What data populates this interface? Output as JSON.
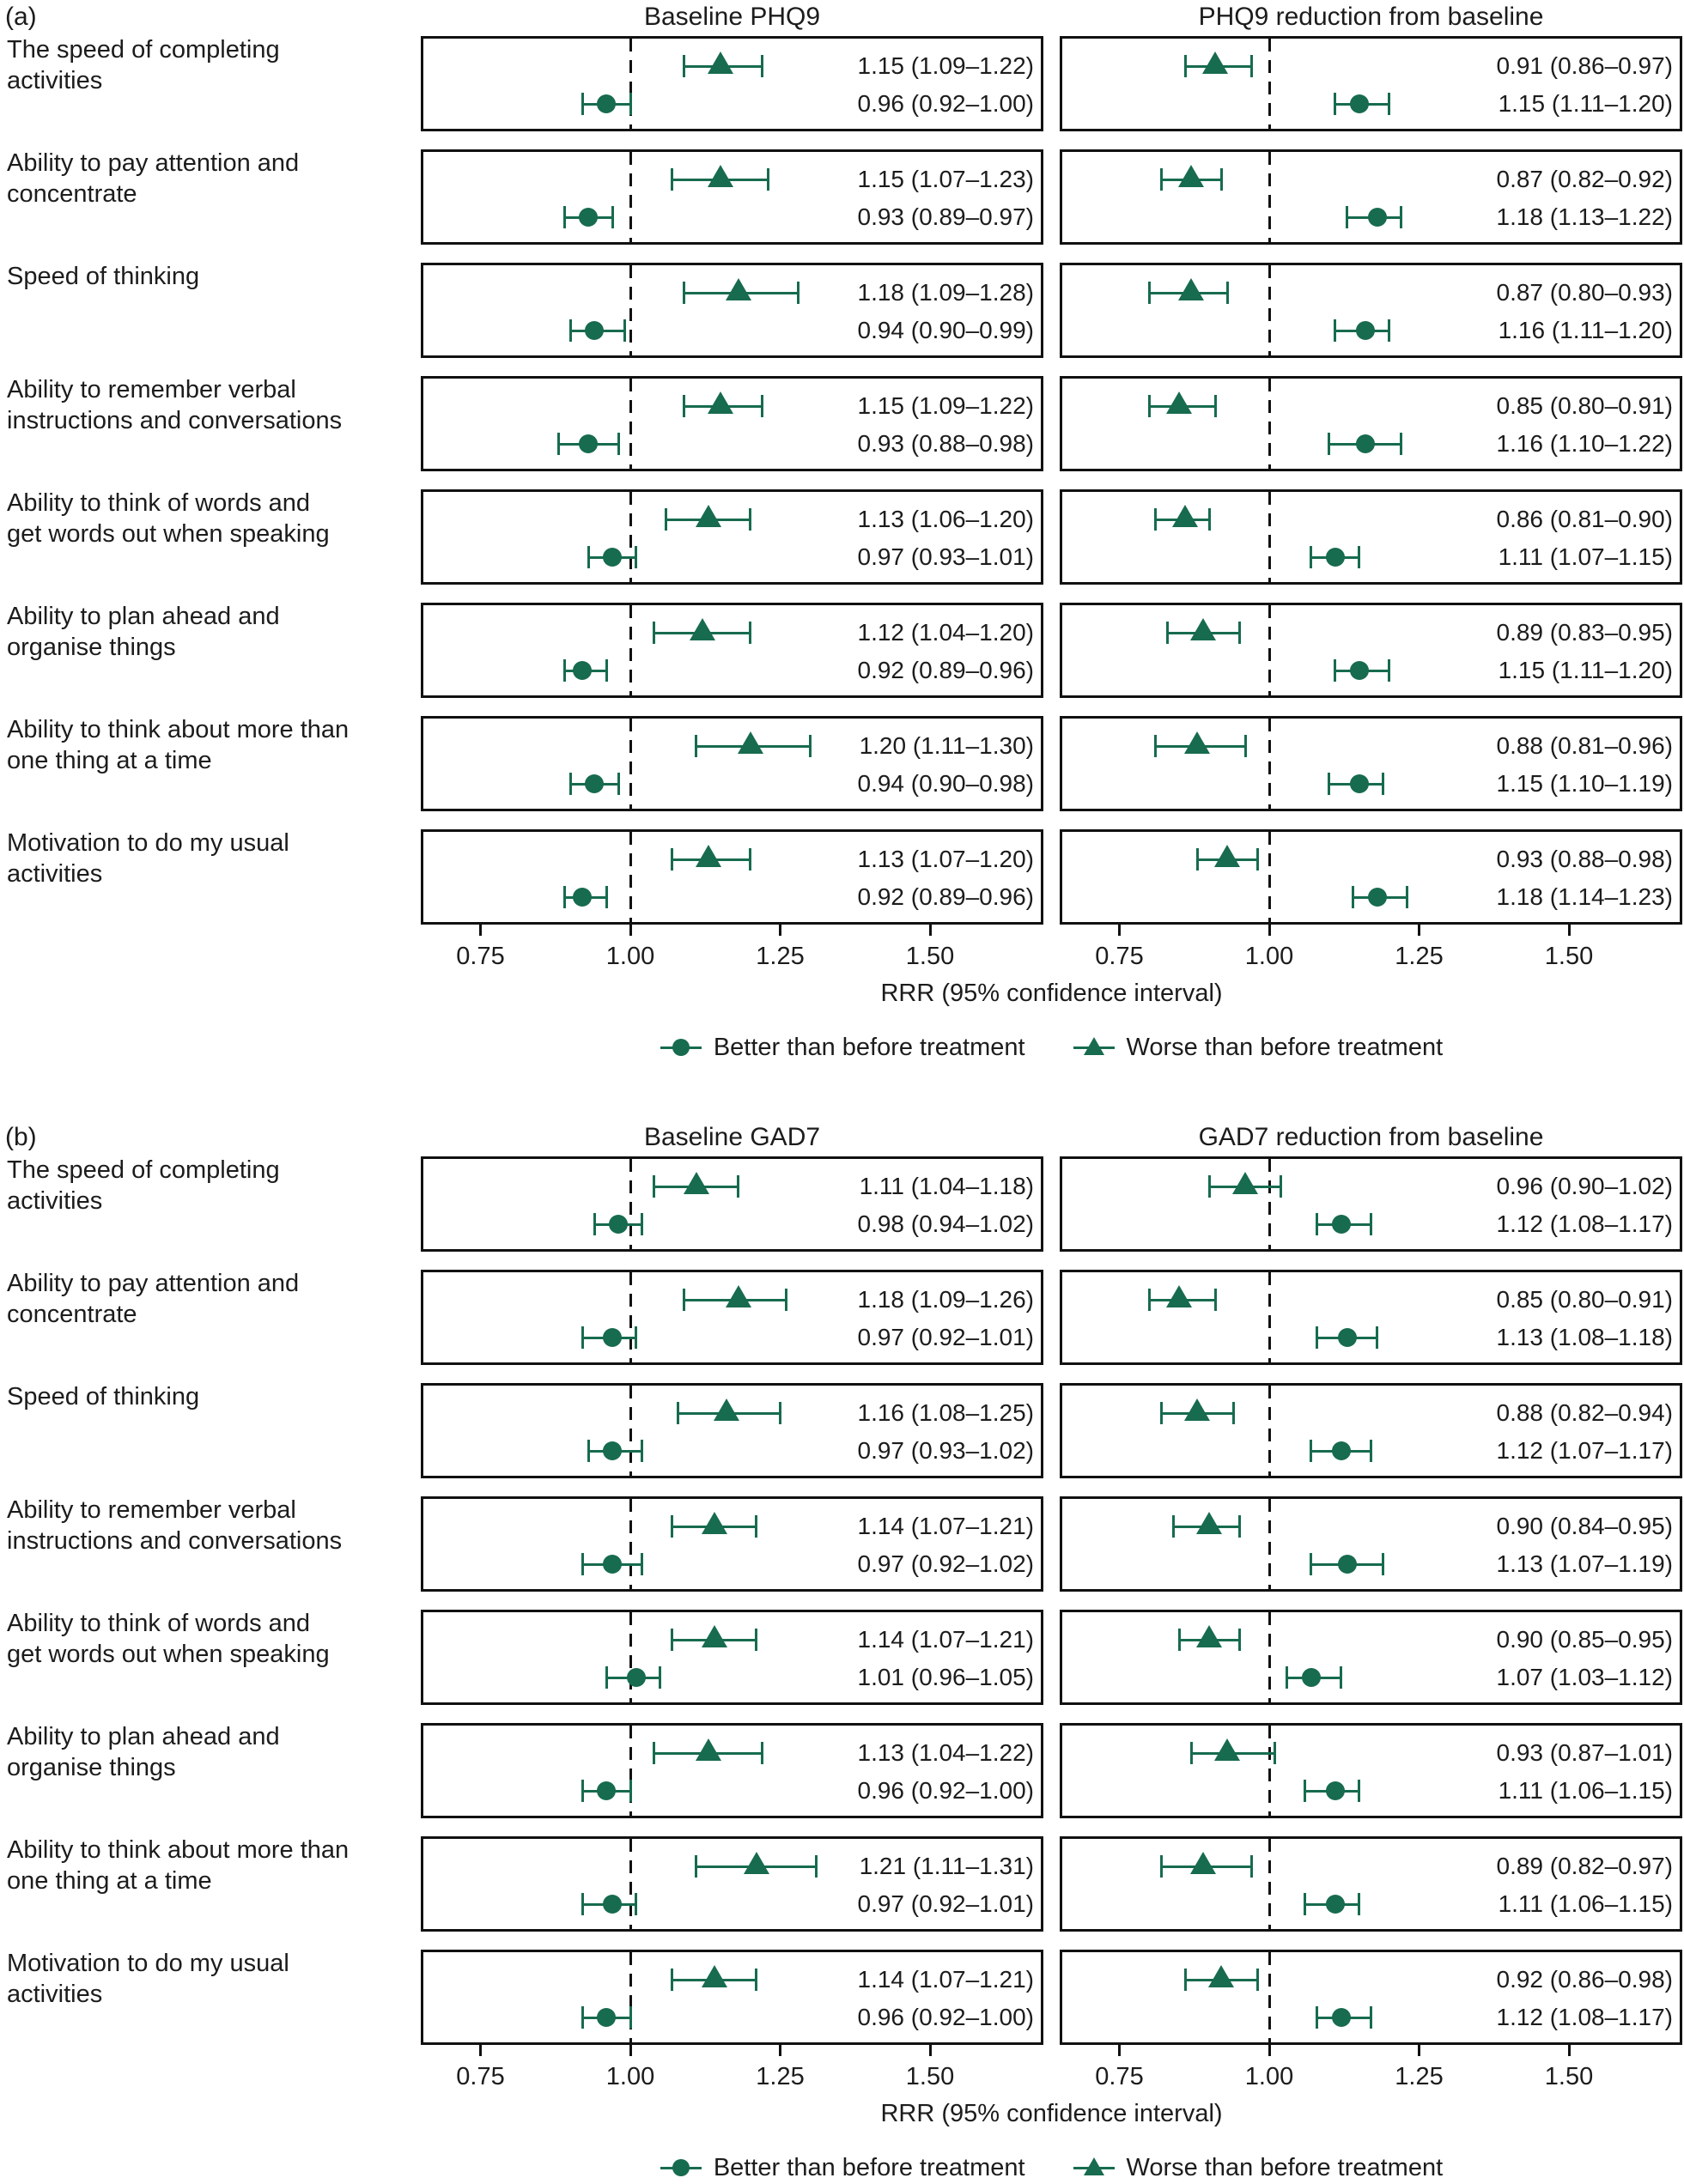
{
  "colors": {
    "marker_green": "#176b4e",
    "line_black": "#111111",
    "text": "#1c1c1c"
  },
  "chart_data": [
    {
      "type": "forest",
      "panel_label": "(a)",
      "xlabel": "RRR (95% confidence interval)",
      "xticks": [
        "0.75",
        "1.00",
        "1.25",
        "1.50"
      ],
      "legend": [
        {
          "marker": "circle",
          "label": "Better than before treatment"
        },
        {
          "marker": "triangle",
          "label": "Worse than before treatment"
        }
      ],
      "outcomes": [
        {
          "lines": [
            "The speed of completing",
            "activities"
          ]
        },
        {
          "lines": [
            "Ability to pay attention and",
            "concentrate"
          ]
        },
        {
          "lines": [
            "Speed of thinking"
          ]
        },
        {
          "lines": [
            "Ability to remember verbal",
            "instructions and conversations"
          ]
        },
        {
          "lines": [
            "Ability to think of words and",
            "get words out when speaking"
          ]
        },
        {
          "lines": [
            "Ability to plan ahead and",
            "organise things"
          ]
        },
        {
          "lines": [
            "Ability to think about more than",
            "one thing at a time"
          ]
        },
        {
          "lines": [
            "Motivation to do my usual",
            "activities"
          ]
        }
      ],
      "columns": [
        {
          "title": "Baseline PHQ9",
          "rows": [
            {
              "worse": [
                1.15,
                1.09,
                1.22
              ],
              "worse_text": "1.15 (1.09–1.22)",
              "better": [
                0.96,
                0.92,
                1.0
              ],
              "better_text": "0.96 (0.92–1.00)"
            },
            {
              "worse": [
                1.15,
                1.07,
                1.23
              ],
              "worse_text": "1.15 (1.07–1.23)",
              "better": [
                0.93,
                0.89,
                0.97
              ],
              "better_text": "0.93 (0.89–0.97)"
            },
            {
              "worse": [
                1.18,
                1.09,
                1.28
              ],
              "worse_text": "1.18 (1.09–1.28)",
              "better": [
                0.94,
                0.9,
                0.99
              ],
              "better_text": "0.94 (0.90–0.99)"
            },
            {
              "worse": [
                1.15,
                1.09,
                1.22
              ],
              "worse_text": "1.15 (1.09–1.22)",
              "better": [
                0.93,
                0.88,
                0.98
              ],
              "better_text": "0.93 (0.88–0.98)"
            },
            {
              "worse": [
                1.13,
                1.06,
                1.2
              ],
              "worse_text": "1.13 (1.06–1.20)",
              "better": [
                0.97,
                0.93,
                1.01
              ],
              "better_text": "0.97 (0.93–1.01)"
            },
            {
              "worse": [
                1.12,
                1.04,
                1.2
              ],
              "worse_text": "1.12 (1.04–1.20)",
              "better": [
                0.92,
                0.89,
                0.96
              ],
              "better_text": "0.92 (0.89–0.96)"
            },
            {
              "worse": [
                1.2,
                1.11,
                1.3
              ],
              "worse_text": "1.20 (1.11–1.30)",
              "better": [
                0.94,
                0.9,
                0.98
              ],
              "better_text": "0.94 (0.90–0.98)"
            },
            {
              "worse": [
                1.13,
                1.07,
                1.2
              ],
              "worse_text": "1.13 (1.07–1.20)",
              "better": [
                0.92,
                0.89,
                0.96
              ],
              "better_text": "0.92 (0.89–0.96)"
            }
          ]
        },
        {
          "title": "PHQ9 reduction from baseline",
          "rows": [
            {
              "worse": [
                0.91,
                0.86,
                0.97
              ],
              "worse_text": "0.91 (0.86–0.97)",
              "better": [
                1.15,
                1.11,
                1.2
              ],
              "better_text": "1.15 (1.11–1.20)"
            },
            {
              "worse": [
                0.87,
                0.82,
                0.92
              ],
              "worse_text": "0.87 (0.82–0.92)",
              "better": [
                1.18,
                1.13,
                1.22
              ],
              "better_text": "1.18 (1.13–1.22)"
            },
            {
              "worse": [
                0.87,
                0.8,
                0.93
              ],
              "worse_text": "0.87 (0.80–0.93)",
              "better": [
                1.16,
                1.11,
                1.2
              ],
              "better_text": "1.16 (1.11–1.20)"
            },
            {
              "worse": [
                0.85,
                0.8,
                0.91
              ],
              "worse_text": "0.85 (0.80–0.91)",
              "better": [
                1.16,
                1.1,
                1.22
              ],
              "better_text": "1.16 (1.10–1.22)"
            },
            {
              "worse": [
                0.86,
                0.81,
                0.9
              ],
              "worse_text": "0.86 (0.81–0.90)",
              "better": [
                1.11,
                1.07,
                1.15
              ],
              "better_text": "1.11 (1.07–1.15)"
            },
            {
              "worse": [
                0.89,
                0.83,
                0.95
              ],
              "worse_text": "0.89 (0.83–0.95)",
              "better": [
                1.15,
                1.11,
                1.2
              ],
              "better_text": "1.15 (1.11–1.20)"
            },
            {
              "worse": [
                0.88,
                0.81,
                0.96
              ],
              "worse_text": "0.88 (0.81–0.96)",
              "better": [
                1.15,
                1.1,
                1.19
              ],
              "better_text": "1.15 (1.10–1.19)"
            },
            {
              "worse": [
                0.93,
                0.88,
                0.98
              ],
              "worse_text": "0.93 (0.88–0.98)",
              "better": [
                1.18,
                1.14,
                1.23
              ],
              "better_text": "1.18 (1.14–1.23)"
            }
          ]
        }
      ]
    },
    {
      "type": "forest",
      "panel_label": "(b)",
      "xlabel": "RRR (95% confidence interval)",
      "xticks": [
        "0.75",
        "1.00",
        "1.25",
        "1.50"
      ],
      "legend": [
        {
          "marker": "circle",
          "label": "Better than before treatment"
        },
        {
          "marker": "triangle",
          "label": "Worse than before treatment"
        }
      ],
      "outcomes": [
        {
          "lines": [
            "The speed of completing",
            "activities"
          ]
        },
        {
          "lines": [
            "Ability to pay attention and",
            "concentrate"
          ]
        },
        {
          "lines": [
            "Speed of thinking"
          ]
        },
        {
          "lines": [
            "Ability to remember verbal",
            "instructions and conversations"
          ]
        },
        {
          "lines": [
            "Ability to think of words and",
            "get words out when speaking"
          ]
        },
        {
          "lines": [
            "Ability to plan ahead and",
            "organise things"
          ]
        },
        {
          "lines": [
            "Ability to think about more than",
            "one thing at a time"
          ]
        },
        {
          "lines": [
            "Motivation to do my usual",
            "activities"
          ]
        }
      ],
      "columns": [
        {
          "title": "Baseline GAD7",
          "rows": [
            {
              "worse": [
                1.11,
                1.04,
                1.18
              ],
              "worse_text": "1.11 (1.04–1.18)",
              "better": [
                0.98,
                0.94,
                1.02
              ],
              "better_text": "0.98 (0.94–1.02)"
            },
            {
              "worse": [
                1.18,
                1.09,
                1.26
              ],
              "worse_text": "1.18 (1.09–1.26)",
              "better": [
                0.97,
                0.92,
                1.01
              ],
              "better_text": "0.97 (0.92–1.01)"
            },
            {
              "worse": [
                1.16,
                1.08,
                1.25
              ],
              "worse_text": "1.16 (1.08–1.25)",
              "better": [
                0.97,
                0.93,
                1.02
              ],
              "better_text": "0.97 (0.93–1.02)"
            },
            {
              "worse": [
                1.14,
                1.07,
                1.21
              ],
              "worse_text": "1.14 (1.07–1.21)",
              "better": [
                0.97,
                0.92,
                1.02
              ],
              "better_text": "0.97 (0.92–1.02)"
            },
            {
              "worse": [
                1.14,
                1.07,
                1.21
              ],
              "worse_text": "1.14 (1.07–1.21)",
              "better": [
                1.01,
                0.96,
                1.05
              ],
              "better_text": "1.01 (0.96–1.05)"
            },
            {
              "worse": [
                1.13,
                1.04,
                1.22
              ],
              "worse_text": "1.13 (1.04–1.22)",
              "better": [
                0.96,
                0.92,
                1.0
              ],
              "better_text": "0.96 (0.92–1.00)"
            },
            {
              "worse": [
                1.21,
                1.11,
                1.31
              ],
              "worse_text": "1.21 (1.11–1.31)",
              "better": [
                0.97,
                0.92,
                1.01
              ],
              "better_text": "0.97 (0.92–1.01)"
            },
            {
              "worse": [
                1.14,
                1.07,
                1.21
              ],
              "worse_text": "1.14 (1.07–1.21)",
              "better": [
                0.96,
                0.92,
                1.0
              ],
              "better_text": "0.96 (0.92–1.00)"
            }
          ]
        },
        {
          "title": "GAD7 reduction from baseline",
          "rows": [
            {
              "worse": [
                0.96,
                0.9,
                1.02
              ],
              "worse_text": "0.96 (0.90–1.02)",
              "better": [
                1.12,
                1.08,
                1.17
              ],
              "better_text": "1.12 (1.08–1.17)"
            },
            {
              "worse": [
                0.85,
                0.8,
                0.91
              ],
              "worse_text": "0.85 (0.80–0.91)",
              "better": [
                1.13,
                1.08,
                1.18
              ],
              "better_text": "1.13 (1.08–1.18)"
            },
            {
              "worse": [
                0.88,
                0.82,
                0.94
              ],
              "worse_text": "0.88 (0.82–0.94)",
              "better": [
                1.12,
                1.07,
                1.17
              ],
              "better_text": "1.12 (1.07–1.17)"
            },
            {
              "worse": [
                0.9,
                0.84,
                0.95
              ],
              "worse_text": "0.90 (0.84–0.95)",
              "better": [
                1.13,
                1.07,
                1.19
              ],
              "better_text": "1.13 (1.07–1.19)"
            },
            {
              "worse": [
                0.9,
                0.85,
                0.95
              ],
              "worse_text": "0.90 (0.85–0.95)",
              "better": [
                1.07,
                1.03,
                1.12
              ],
              "better_text": "1.07 (1.03–1.12)"
            },
            {
              "worse": [
                0.93,
                0.87,
                1.01
              ],
              "worse_text": "0.93 (0.87–1.01)",
              "better": [
                1.11,
                1.06,
                1.15
              ],
              "better_text": "1.11 (1.06–1.15)"
            },
            {
              "worse": [
                0.89,
                0.82,
                0.97
              ],
              "worse_text": "0.89 (0.82–0.97)",
              "better": [
                1.11,
                1.06,
                1.15
              ],
              "better_text": "1.11 (1.06–1.15)"
            },
            {
              "worse": [
                0.92,
                0.86,
                0.98
              ],
              "worse_text": "0.92 (0.86–0.98)",
              "better": [
                1.12,
                1.08,
                1.17
              ],
              "better_text": "1.12 (1.08–1.17)"
            }
          ]
        }
      ]
    }
  ]
}
